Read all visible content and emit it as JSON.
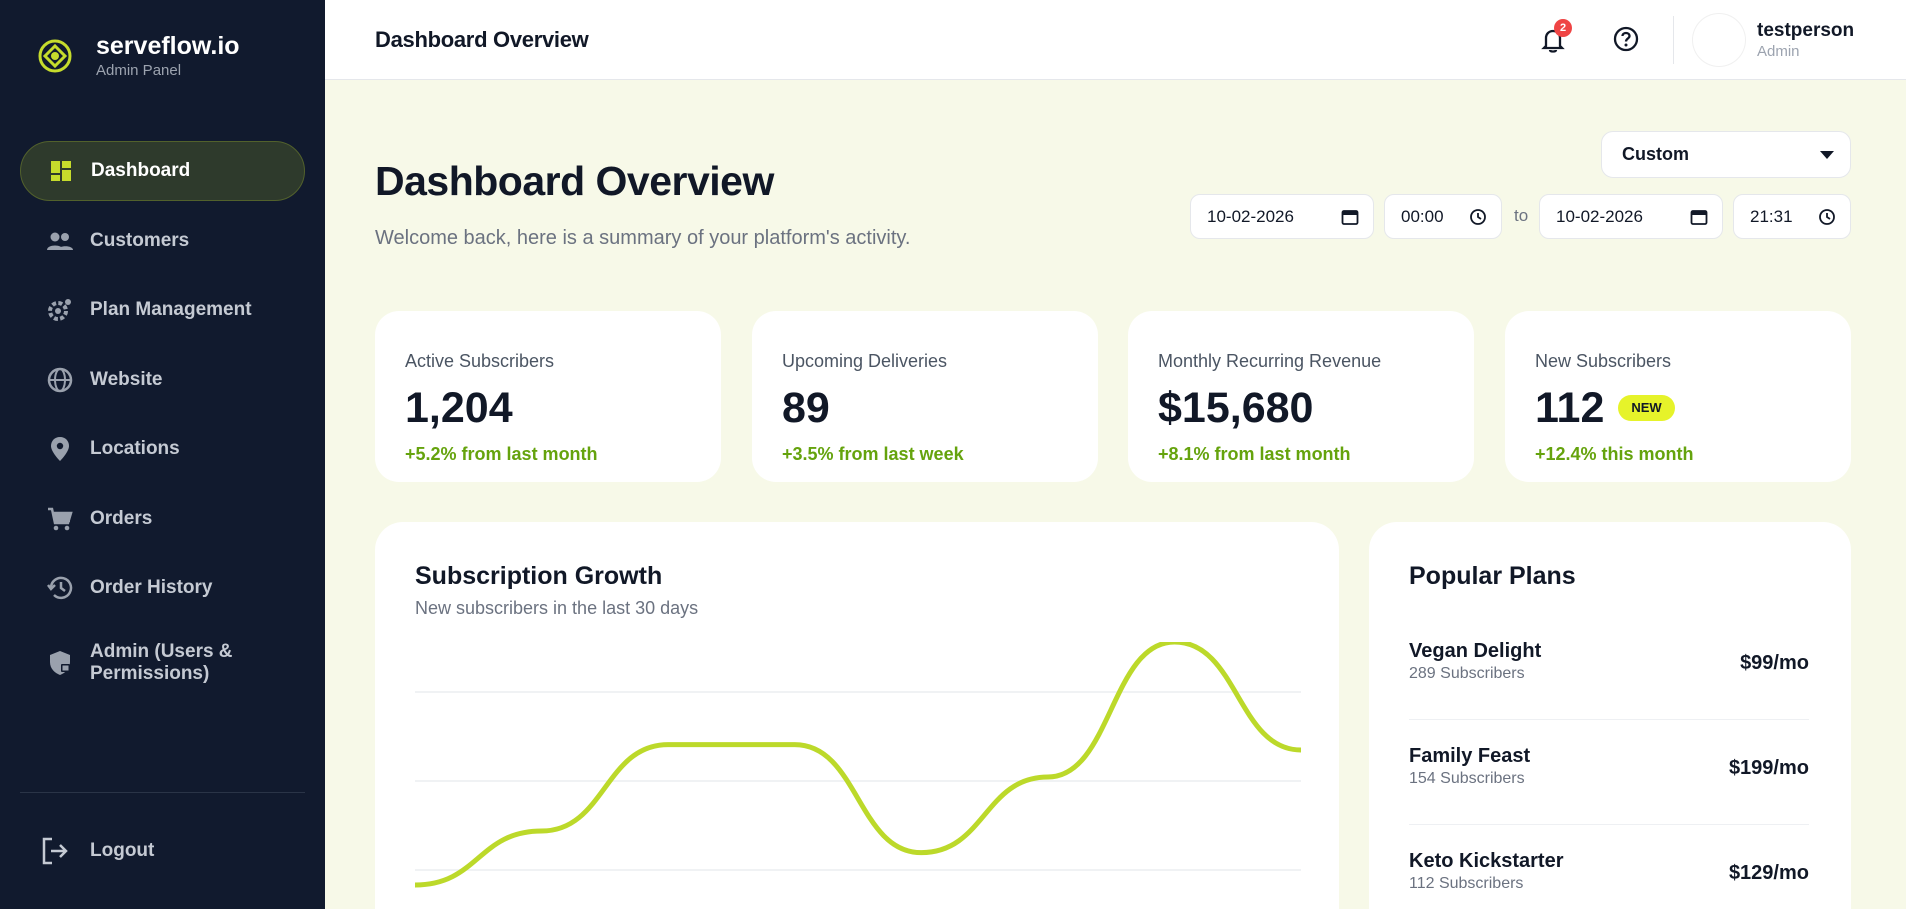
{
  "brand": {
    "name": "serveflow.io",
    "subtitle": "Admin Panel"
  },
  "sidebar": {
    "items": [
      {
        "label": "Dashboard",
        "icon": "dashboard-icon",
        "active": true
      },
      {
        "label": "Customers",
        "icon": "people-icon"
      },
      {
        "label": "Plan Management",
        "icon": "gear-settings-icon"
      },
      {
        "label": "Website",
        "icon": "globe-icon"
      },
      {
        "label": "Locations",
        "icon": "map-pin-icon"
      },
      {
        "label": "Orders",
        "icon": "cart-icon"
      },
      {
        "label": "Order History",
        "icon": "history-icon"
      },
      {
        "label": "Admin (Users & Permissions)",
        "icon": "shield-lock-icon"
      }
    ],
    "logout_label": "Logout"
  },
  "topbar": {
    "title": "Dashboard Overview",
    "notification_count": "2",
    "user": {
      "name": "testperson",
      "role": "Admin"
    }
  },
  "header": {
    "title": "Dashboard Overview",
    "subtitle": "Welcome back, here is a summary of your platform's activity.",
    "range_select": "Custom",
    "from_date": "10-02-2026",
    "from_time": "00:00",
    "to_label": "to",
    "to_date": "10-02-2026",
    "to_time": "21:31"
  },
  "stats": [
    {
      "label": "Active Subscribers",
      "value": "1,204",
      "note": "+5.2% from last month"
    },
    {
      "label": "Upcoming Deliveries",
      "value": "89",
      "note": "+3.5% from last week"
    },
    {
      "label": "Monthly Recurring Revenue",
      "value": "$15,680",
      "note": "+8.1% from last month"
    },
    {
      "label": "New Subscribers",
      "value": "112",
      "badge": "NEW",
      "note": "+12.4% this month"
    }
  ],
  "growth_chart": {
    "title": "Subscription Growth",
    "subtitle": "New subscribers in the last 30 days"
  },
  "chart_data": {
    "type": "line",
    "title": "Subscription Growth",
    "subtitle": "New subscribers in the last 30 days",
    "x": [
      0,
      1,
      2,
      3,
      4,
      5,
      6,
      7
    ],
    "values": [
      10,
      30,
      62,
      62,
      22,
      50,
      100,
      60
    ],
    "grid": true,
    "color": "#bcd92a"
  },
  "plans": {
    "title": "Popular Plans",
    "items": [
      {
        "name": "Vegan Delight",
        "subscribers": "289 Subscribers",
        "price": "$99/mo"
      },
      {
        "name": "Family Feast",
        "subscribers": "154 Subscribers",
        "price": "$199/mo"
      },
      {
        "name": "Keto Kickstarter",
        "subscribers": "112 Subscribers",
        "price": "$129/mo"
      }
    ]
  },
  "colors": {
    "sidebar_bg": "#111a2e",
    "accent": "#bcd92a",
    "positive": "#65a30d",
    "page_bg": "#f7f9e8"
  }
}
